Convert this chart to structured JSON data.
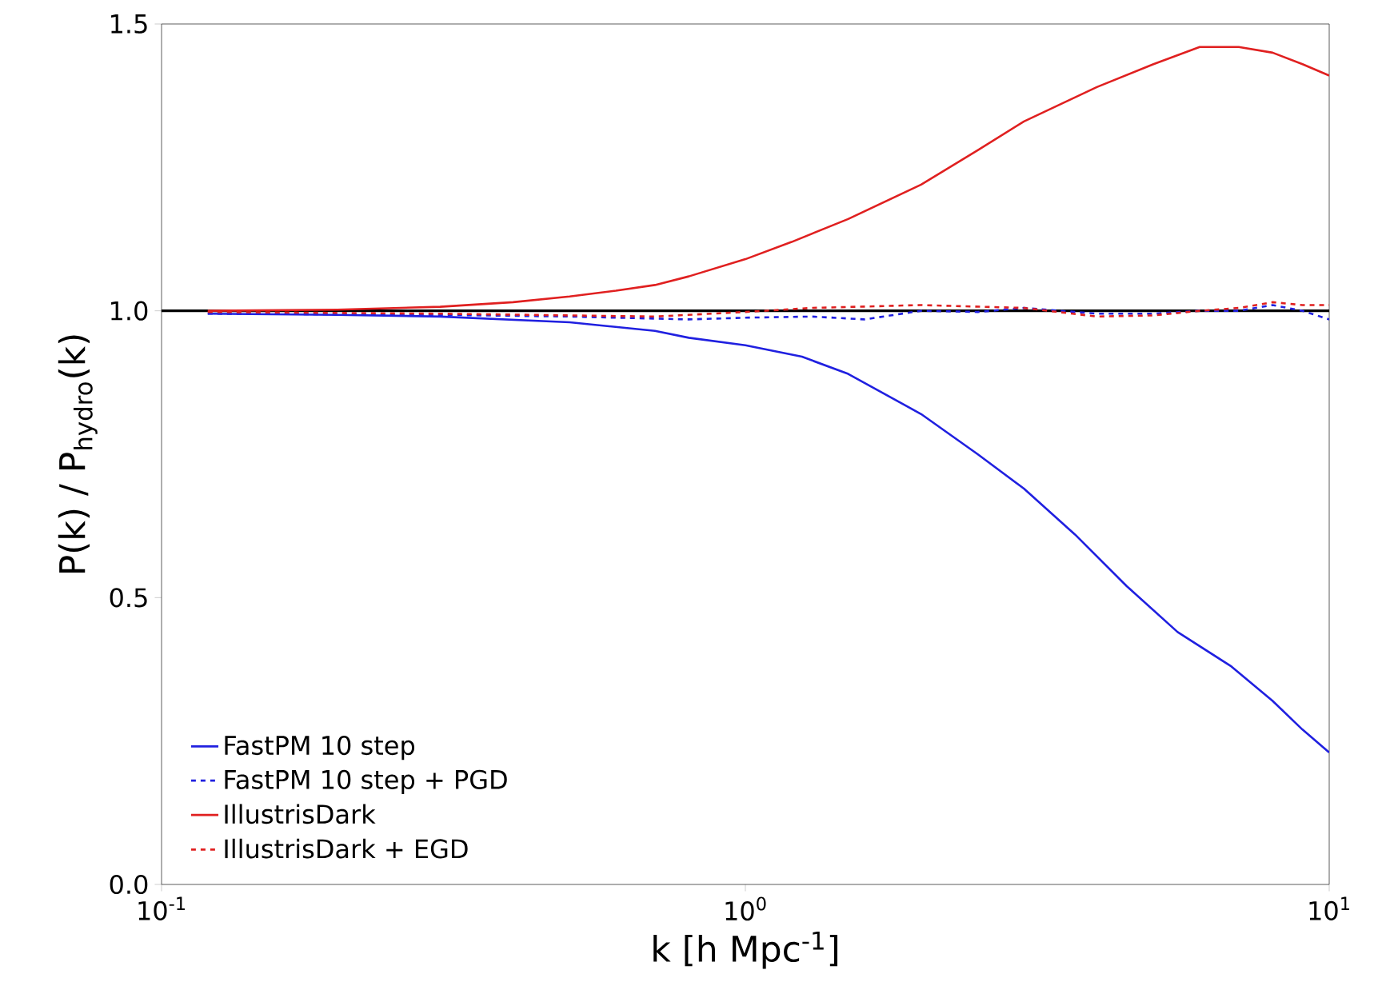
{
  "chart_data": {
    "type": "line",
    "xlabel": "k [h Mpc$^{-1}$]",
    "ylabel": "P(k) / P$_{hydro}$(k)",
    "log": "x",
    "xlim": [
      0.1,
      10
    ],
    "xticks": [
      {
        "value": 0.1,
        "label": "10$^{-1}$"
      },
      {
        "value": 1,
        "label": "10$^{0}$"
      },
      {
        "value": 10,
        "label": "10$^{1}$"
      }
    ],
    "ylim": [
      0,
      1.5
    ],
    "yticks": [
      {
        "value": 0,
        "label": "0.0"
      },
      {
        "value": 0.5,
        "label": "0.5"
      },
      {
        "value": 1,
        "label": "1.0"
      },
      {
        "value": 1.5,
        "label": "1.5"
      }
    ],
    "grid": false,
    "legend": "bottom left",
    "ref_lines": [
      {
        "axis": "y",
        "value": 1,
        "color": "#000000",
        "line_style": "solid"
      }
    ],
    "series": [
      {
        "name": "FastPM 10 step",
        "color": "#2020e0",
        "line_style": "solid",
        "x": [
          0.12,
          0.2,
          0.3,
          0.5,
          0.7,
          0.8,
          1.0,
          1.25,
          1.5,
          2.0,
          2.5,
          3.0,
          3.67,
          4.5,
          5.5,
          6.8,
          8.0,
          9.0,
          10
        ],
        "values": [
          0.995,
          0.993,
          0.99,
          0.98,
          0.965,
          0.953,
          0.94,
          0.92,
          0.89,
          0.82,
          0.75,
          0.69,
          0.61,
          0.52,
          0.44,
          0.38,
          0.32,
          0.27,
          0.23
        ]
      },
      {
        "name": "FastPM 10 step + PGD",
        "color": "#2020e0",
        "line_style": "dashed",
        "x": [
          0.12,
          0.3,
          0.5,
          0.8,
          1.0,
          1.3,
          1.6,
          2.0,
          2.5,
          3.0,
          4.0,
          5.0,
          6.0,
          7.0,
          8.0,
          9.0,
          10
        ],
        "values": [
          0.995,
          0.993,
          0.99,
          0.985,
          0.988,
          0.99,
          0.985,
          1.0,
          0.998,
          1.005,
          0.995,
          0.995,
          1.0,
          1.0,
          1.01,
          1.0,
          0.985
        ]
      },
      {
        "name": "IllustrisDark",
        "color": "#e02020",
        "line_style": "solid",
        "x": [
          0.12,
          0.2,
          0.3,
          0.4,
          0.5,
          0.6,
          0.7,
          0.8,
          1.0,
          1.2,
          1.5,
          2.0,
          2.5,
          3.0,
          4.0,
          5.0,
          6.0,
          7.0,
          8.0,
          9.0,
          10
        ],
        "values": [
          1.0,
          1.002,
          1.007,
          1.015,
          1.025,
          1.035,
          1.045,
          1.06,
          1.09,
          1.12,
          1.16,
          1.22,
          1.28,
          1.33,
          1.39,
          1.43,
          1.46,
          1.46,
          1.45,
          1.43,
          1.41
        ]
      },
      {
        "name": "IllustrisDark + EGD",
        "color": "#e02020",
        "line_style": "dashed",
        "x": [
          0.12,
          0.3,
          0.5,
          0.7,
          1.0,
          1.3,
          2.0,
          3.0,
          4.0,
          5.0,
          6.0,
          7.0,
          8.0,
          9.0,
          10
        ],
        "values": [
          0.998,
          0.995,
          0.992,
          0.99,
          0.998,
          1.005,
          1.01,
          1.005,
          0.99,
          0.992,
          1.0,
          1.005,
          1.015,
          1.01,
          1.01
        ]
      }
    ]
  }
}
